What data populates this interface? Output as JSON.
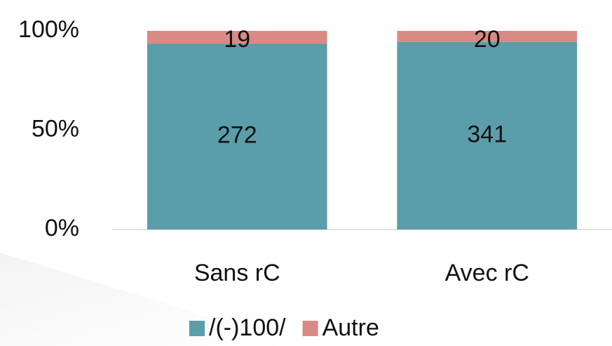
{
  "chart_data": {
    "type": "bar",
    "stacking": "percent",
    "categories": [
      "Sans rC",
      "Avec rC"
    ],
    "series": [
      {
        "name": "/(-)100/",
        "color": "#5a9ea9",
        "values": [
          272,
          341
        ]
      },
      {
        "name": "Autre",
        "color": "#d98a84",
        "values": [
          19,
          20
        ]
      }
    ],
    "ylim": [
      0,
      100
    ],
    "yticks": [
      {
        "value": 0,
        "label": "0%"
      },
      {
        "value": 50,
        "label": "50%"
      },
      {
        "value": 100,
        "label": "100%"
      }
    ],
    "legend": "bottom"
  }
}
